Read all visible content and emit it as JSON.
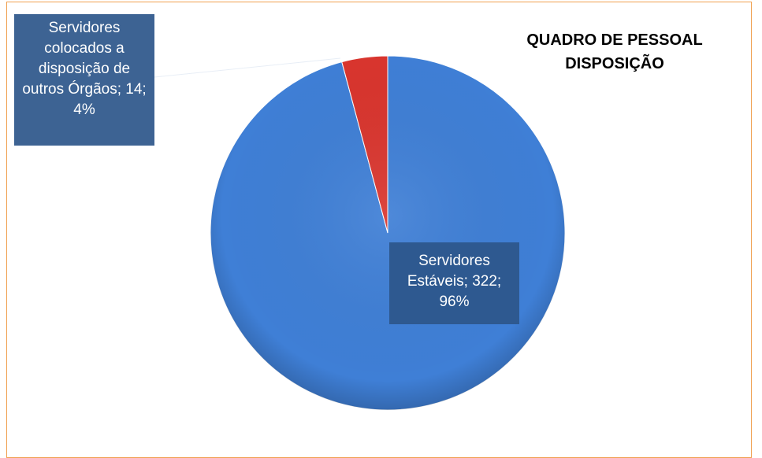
{
  "chart_data": {
    "type": "pie",
    "title": "QUADRO DE PESSOAL DISPOSIÇÃO",
    "values": [
      322,
      14
    ],
    "value_labels": [
      "Servidores Estáveis; 322; 96%",
      "Servidores colocados a disposição de outros Órgãos; 14; 4%"
    ],
    "colors": [
      "#3f7fd6",
      "#d9352e"
    ]
  }
}
